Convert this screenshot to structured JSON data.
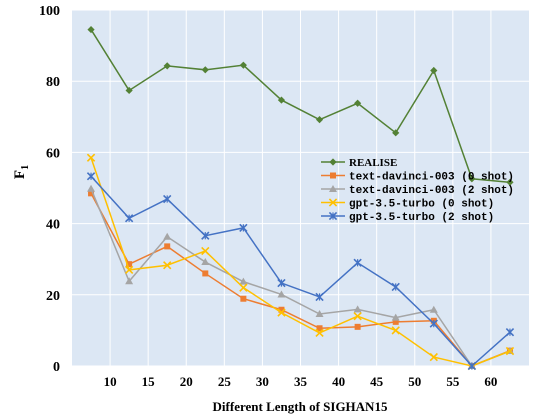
{
  "chart_data": {
    "type": "line",
    "xlabel": "Different Length of SIGHAN15",
    "ylabel": "F",
    "ylabel_sub": "1",
    "xlim": [
      5,
      65
    ],
    "ylim": [
      0,
      100
    ],
    "xticks": [
      10,
      15,
      20,
      25,
      30,
      35,
      40,
      45,
      50,
      55,
      60
    ],
    "yticks": [
      0,
      20,
      40,
      60,
      80,
      100
    ],
    "x": [
      7.5,
      12.5,
      17.5,
      22.5,
      27.5,
      32.5,
      37.5,
      42.5,
      47.5,
      52.5,
      57.5,
      62.5
    ],
    "grid": true,
    "legend_position": "right-middle",
    "series": [
      {
        "name": "REALISE",
        "color": "#538135",
        "marker": "diamond",
        "values": [
          94.5,
          77.4,
          84.3,
          83.2,
          84.5,
          74.7,
          69.2,
          73.8,
          65.5,
          83.0,
          52.6,
          51.6
        ]
      },
      {
        "name": "text-davinci-003 (0 shot)",
        "color": "#ed7d31",
        "marker": "square",
        "values": [
          48.5,
          28.6,
          33.6,
          26.0,
          18.9,
          15.8,
          10.6,
          11.0,
          12.4,
          12.7,
          0.0,
          4.3
        ]
      },
      {
        "name": "text-davinci-003 (2 shot)",
        "color": "#a5a5a5",
        "marker": "triangle",
        "values": [
          49.8,
          23.8,
          36.3,
          29.2,
          23.7,
          20.1,
          14.6,
          15.9,
          13.6,
          15.8,
          0.0,
          4.2
        ]
      },
      {
        "name": "gpt-3.5-turbo (0 shot)",
        "color": "#ffc000",
        "marker": "x",
        "values": [
          58.5,
          27.0,
          28.3,
          32.3,
          22.0,
          15.0,
          9.3,
          14.0,
          10.0,
          2.5,
          0.0,
          4.2
        ]
      },
      {
        "name": "gpt-3.5-turbo (2 shot)",
        "color": "#4472c4",
        "marker": "star",
        "values": [
          53.3,
          41.5,
          46.9,
          36.6,
          38.8,
          23.3,
          19.4,
          29.0,
          22.2,
          11.9,
          0.0,
          9.5
        ]
      }
    ]
  }
}
